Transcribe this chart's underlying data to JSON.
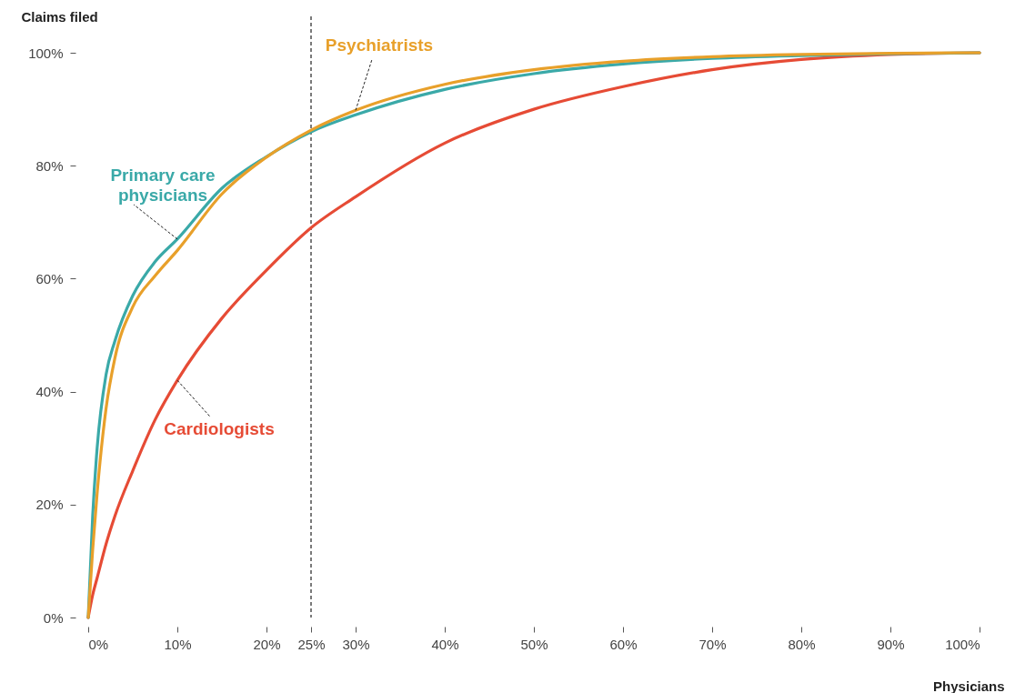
{
  "chart_data": {
    "type": "line",
    "xlabel": "Physicians",
    "ylabel": "Claims filed",
    "x": [
      0,
      0.5,
      1,
      2,
      3,
      5,
      7.5,
      10,
      15,
      20,
      25,
      30,
      40,
      50,
      60,
      70,
      80,
      90,
      100
    ],
    "series": [
      {
        "name": "Cardiologists",
        "color": "#e64b35",
        "values": [
          0,
          4,
          7,
          13,
          18,
          26,
          35,
          42,
          53,
          61.5,
          69,
          74.5,
          84,
          90,
          94,
          97,
          98.8,
          99.7,
          100
        ]
      },
      {
        "name": "Primary care physicians",
        "color": "#3aa9a8",
        "values": [
          0,
          18,
          30,
          43,
          49,
          57,
          63,
          67,
          76,
          81.6,
          86,
          89,
          93.5,
          96.3,
          98,
          99,
          99.5,
          99.8,
          100
        ]
      },
      {
        "name": "Psychiatrists",
        "color": "#e8a02a",
        "values": [
          0,
          12,
          22,
          37,
          46,
          55,
          60.5,
          65,
          75,
          81.5,
          86.3,
          89.8,
          94.4,
          97,
          98.5,
          99.3,
          99.7,
          99.9,
          100
        ]
      }
    ],
    "ref_lines": [
      {
        "axis": "x",
        "value": 25,
        "label": null,
        "line_style": "dashed",
        "color": "#222222"
      }
    ],
    "xlim": [
      0,
      100
    ],
    "ylim": [
      0,
      100
    ],
    "xticks": [
      {
        "value": 0,
        "label": "0%"
      },
      {
        "value": 10,
        "label": "10%"
      },
      {
        "value": 20,
        "label": "20%"
      },
      {
        "value": 25,
        "label": "25%"
      },
      {
        "value": 30,
        "label": "30%"
      },
      {
        "value": 40,
        "label": "40%"
      },
      {
        "value": 50,
        "label": "50%"
      },
      {
        "value": 60,
        "label": "60%"
      },
      {
        "value": 70,
        "label": "70%"
      },
      {
        "value": 80,
        "label": "80%"
      },
      {
        "value": 90,
        "label": "90%"
      },
      {
        "value": 100,
        "label": "100%"
      }
    ],
    "yticks": [
      {
        "value": 0,
        "label": "0%"
      },
      {
        "value": 20,
        "label": "20%"
      },
      {
        "value": 40,
        "label": "40%"
      },
      {
        "value": 60,
        "label": "60%"
      },
      {
        "value": 80,
        "label": "80%"
      },
      {
        "value": 100,
        "label": "100%"
      }
    ],
    "grid": false,
    "legend": false,
    "marker": "none",
    "line_style": "solid"
  }
}
